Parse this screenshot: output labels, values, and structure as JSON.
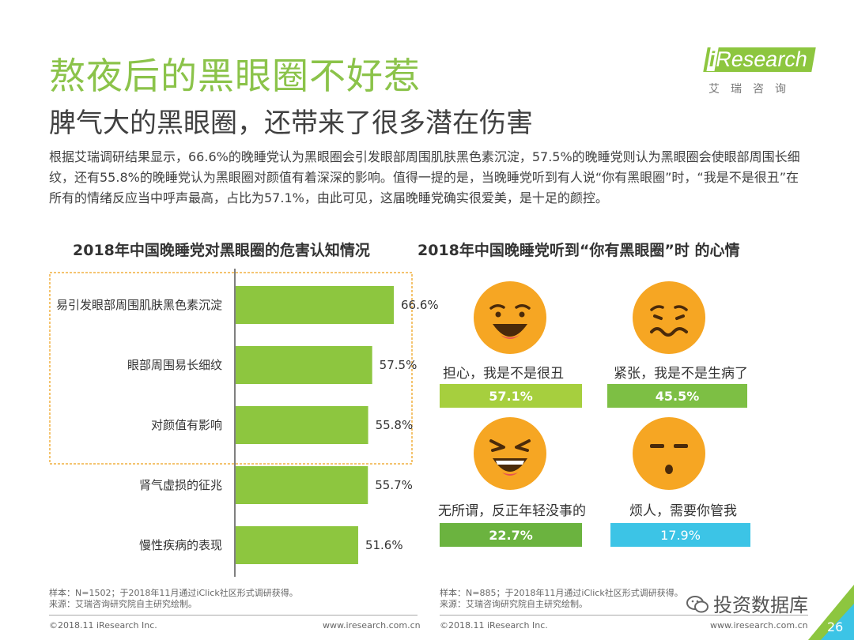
{
  "header": {
    "title": "熬夜后的黑眼圈不好惹",
    "subtitle": "脾气大的黑眼圈，还带来了很多潜在伤害",
    "logo_text_i": "i",
    "logo_text_rest": "Research",
    "logo_cn": "艾瑞咨询"
  },
  "intro": "根据艾瑞调研结果显示，66.6%的晚睡党认为黑眼圈会引发眼部周围肌肤黑色素沉淀，57.5%的晚睡党则认为黑眼圈会使眼部周围长细纹，还有55.8%的晚睡党认为黑眼圈对颜值有着深深的影响。值得一提的是，当晚睡党听到有人说“你有黑眼圈”时，“我是不是很丑”在所有的情绪反应当中呼声最高，占比为57.1%，由此可见，这届晚睡党确实很爱美，是十足的颜控。",
  "chart_data": [
    {
      "type": "bar",
      "orientation": "horizontal",
      "title": "2018年中国晚睡党对黑眼圈的危害认知情况",
      "categories": [
        "易引发眼部周围肌肤黑色素沉淀",
        "眼部周围易长细纹",
        "对颜值有影响",
        "肾气虚损的征兆",
        "慢性疾病的表现"
      ],
      "values": [
        66.6,
        57.5,
        55.8,
        55.7,
        51.6
      ],
      "value_labels": [
        "66.6%",
        "57.5%",
        "55.8%",
        "55.7%",
        "51.6%"
      ],
      "unit": "%",
      "color": "#8dc63f",
      "highlight_top_n": 3,
      "highlight_color": "#f0b040"
    },
    {
      "type": "bar",
      "title": "2018年中国晚睡党听到“你有黑眼圈”时 的心情",
      "categories": [
        "担心，我是不是很丑",
        "紧张，我是不是生病了",
        "无所谓，反正年轻没事的",
        "烦人，需要你管我"
      ],
      "values": [
        57.1,
        45.5,
        22.7,
        17.9
      ],
      "value_labels": [
        "57.1%",
        "45.5%",
        "22.7%",
        "17.9%"
      ],
      "unit": "%",
      "colors": [
        "#a6cf3e",
        "#7dbf44",
        "#6bb33f",
        "#3cc4e6"
      ],
      "icons": [
        "grin-face-icon",
        "worried-face-icon",
        "laughing-face-icon",
        "expressionless-face-icon"
      ]
    }
  ],
  "notes": {
    "left": [
      "样本：N=1502；于2018年11月通过iClick社区形式调研获得。",
      "来源：艾瑞咨询研究院自主研究绘制。"
    ],
    "right": [
      "样本：N=885；于2018年11月通过iClick社区形式调研获得。",
      "来源：艾瑞咨询研究院自主研究绘制。"
    ]
  },
  "footer": {
    "copyright": "©2018.11 iResearch Inc.",
    "url": "www.iresearch.com.cn",
    "watermark": "投资数据库",
    "page_number": "26"
  },
  "colors": {
    "accent_green": "#8dc63f",
    "face_orange": "#f6a623",
    "highlight_border": "#f0b040",
    "blue": "#3cc4e6"
  }
}
